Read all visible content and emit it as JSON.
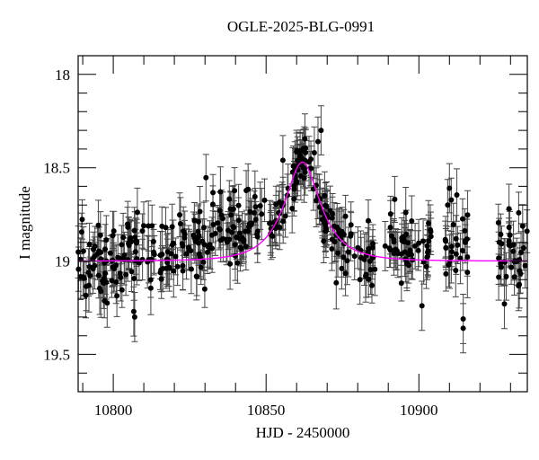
{
  "chart_data": {
    "type": "scatter",
    "title": "OGLE-2025-BLG-0991",
    "xlabel": "HJD - 2450000",
    "ylabel": "I magnitude",
    "xlim": [
      10788.5,
      10935.5
    ],
    "ylim": [
      19.7,
      17.9
    ],
    "y_inverted": true,
    "grid": false,
    "legend": null,
    "x_ticks_major": [
      10800,
      10850,
      10900
    ],
    "x_ticks_minor_step": 10,
    "y_ticks_major": [
      18,
      18.5,
      19,
      19.5
    ],
    "y_ticks_minor_step": 0.1,
    "series": [
      {
        "name": "observations",
        "style": "black filled circles with error bars",
        "color": "#000000",
        "typical_error_mag": 0.12,
        "segments": [
          {
            "x_range": [
              10788.5,
              10803
            ],
            "n": 60,
            "mean_mag": 19.0,
            "scatter": 0.09
          },
          {
            "x_range": [
              10803,
              10808
            ],
            "n": 25,
            "mean_mag": 18.93,
            "scatter": 0.1
          },
          {
            "x_range": [
              10808,
              10815
            ],
            "n": 14,
            "mean_mag": 18.97,
            "scatter": 0.1
          },
          {
            "x_range": [
              10815,
              10831
            ],
            "n": 60,
            "mean_mag": 18.93,
            "scatter": 0.1
          },
          {
            "x_range": [
              10831,
              10846
            ],
            "n": 55,
            "mean_mag": 18.85,
            "scatter": 0.09
          },
          {
            "x_range": [
              10846,
              10850
            ],
            "n": 10,
            "mean_mag": 18.8,
            "scatter": 0.09
          },
          {
            "x_range": [
              10851,
              10863
            ],
            "n": 60,
            "mean_mag": "model",
            "scatter": 0.07
          },
          {
            "x_range": [
              10864,
              10870
            ],
            "n": 20,
            "mean_mag": "model",
            "scatter": 0.08
          },
          {
            "x_range": [
              10868,
              10886
            ],
            "n": 60,
            "mean_mag": "model",
            "scatter": 0.08
          },
          {
            "x_range": [
              10890,
              10904
            ],
            "n": 50,
            "mean_mag": 18.92,
            "scatter": 0.09
          },
          {
            "x_range": [
              10908,
              10916
            ],
            "n": 28,
            "mean_mag": 18.93,
            "scatter": 0.1
          },
          {
            "x_range": [
              10926,
              10935.5
            ],
            "n": 35,
            "mean_mag": 18.95,
            "scatter": 0.09
          }
        ],
        "notable_points": [
          {
            "x": 10807,
            "y": 19.3
          },
          {
            "x": 10806.7,
            "y": 19.27
          },
          {
            "x": 10855.5,
            "y": 18.46
          },
          {
            "x": 10867,
            "y": 18.36
          },
          {
            "x": 10868,
            "y": 18.3
          },
          {
            "x": 10889,
            "y": 18.92
          },
          {
            "x": 10901,
            "y": 19.24
          },
          {
            "x": 10910,
            "y": 18.61
          },
          {
            "x": 10914.5,
            "y": 19.36
          },
          {
            "x": 10914.5,
            "y": 19.31
          },
          {
            "x": 10928,
            "y": 19.23
          },
          {
            "x": 10929.5,
            "y": 18.72
          }
        ]
      },
      {
        "name": "model",
        "style": "line",
        "color": "#ff00ff",
        "t0": 10861.9,
        "u0": 0.55,
        "tE": 11.5,
        "I_base": 19.0,
        "samples_x": [
          10788.5,
          10836,
          10850,
          10862,
          10874,
          10890,
          10905,
          10935.5
        ],
        "samples_y": [
          19.0,
          18.9,
          18.65,
          18.47,
          18.72,
          18.9,
          18.97,
          19.0
        ]
      }
    ]
  }
}
